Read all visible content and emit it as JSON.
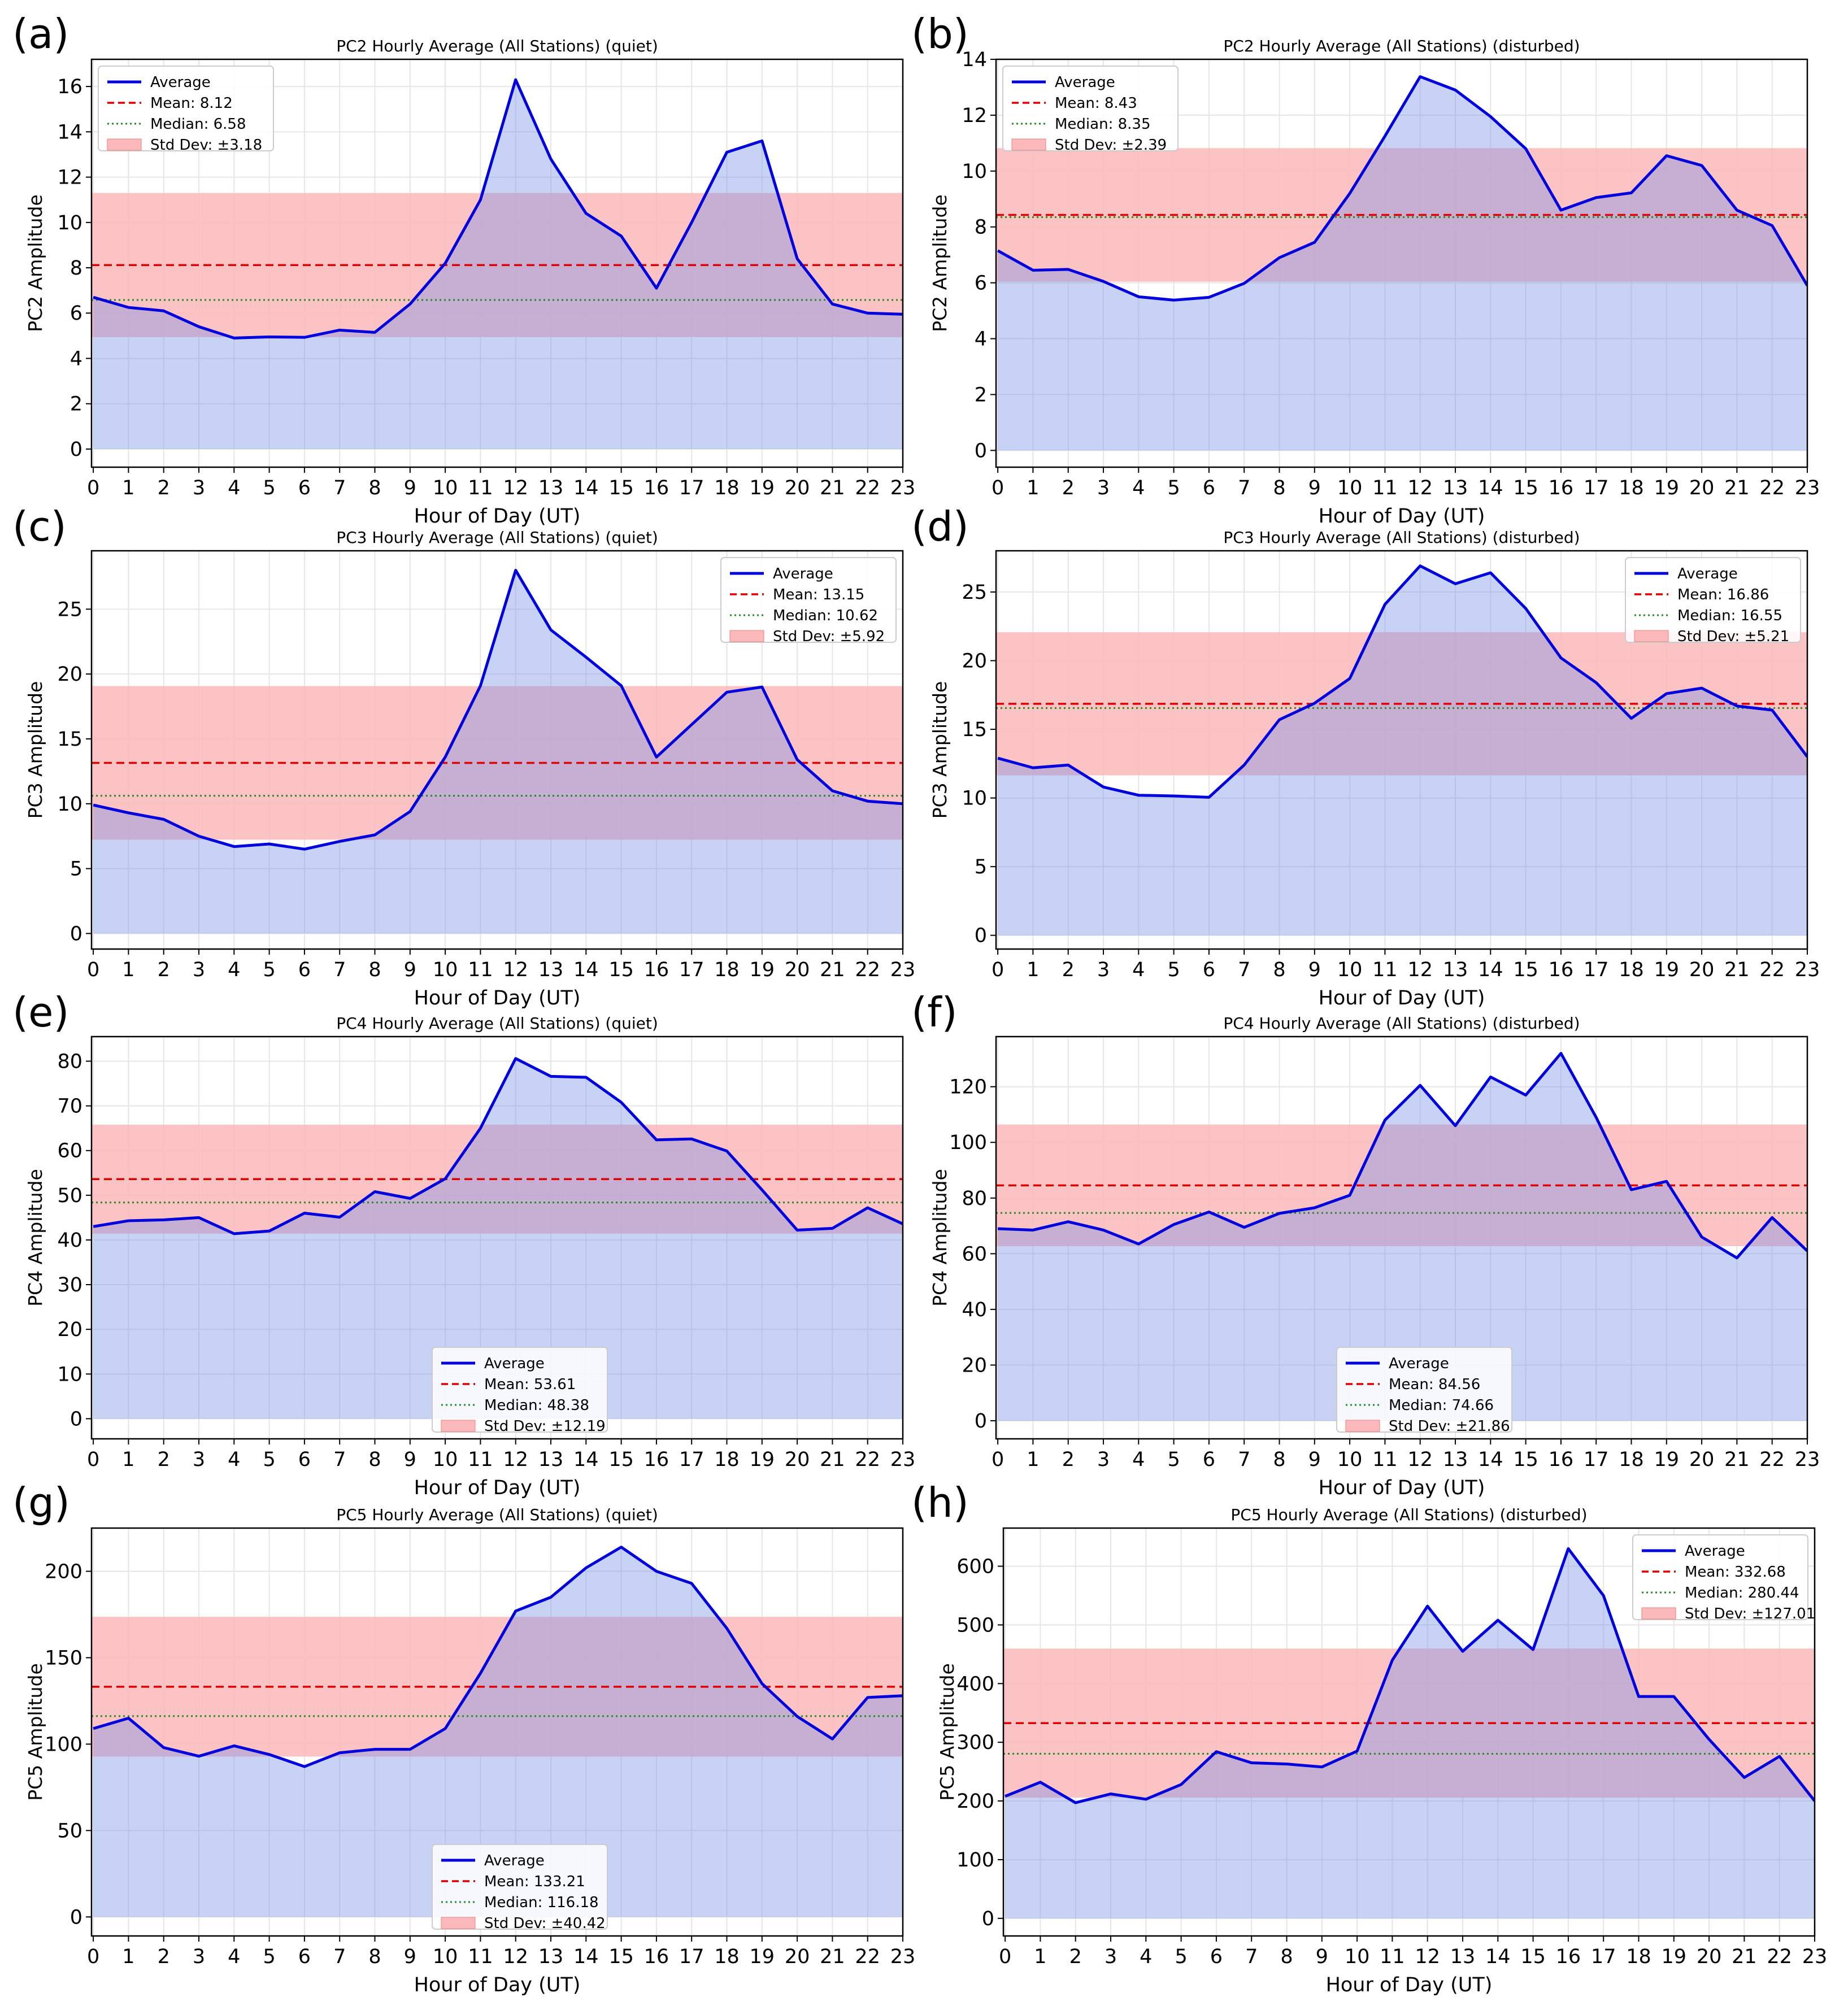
{
  "hours": [
    0,
    1,
    2,
    3,
    4,
    5,
    6,
    7,
    8,
    9,
    10,
    11,
    12,
    13,
    14,
    15,
    16,
    17,
    18,
    19,
    20,
    21,
    22,
    23
  ],
  "xlabel": "Hour of Day (UT)",
  "legend_average": "Average",
  "legend_mean_prefix": "Mean: ",
  "legend_median_prefix": "Median: ",
  "legend_std_prefix": "Std Dev: ±",
  "colors": {
    "line": "#0000dd",
    "fill": "#c2cdf2",
    "band": "#fbb9bb",
    "overlap": "#c9a4c9",
    "mean": "#e00000",
    "median": "#228b22"
  },
  "chart_data": [
    {
      "letter": "(a)",
      "type": "area",
      "title": "PC2 Hourly Average (All Stations) (quiet)",
      "ylabel": "PC2 Amplitude",
      "ylim": [
        -0.8,
        17.2
      ],
      "yticks": [
        0,
        2,
        4,
        6,
        8,
        10,
        12,
        14,
        16
      ],
      "values": [
        6.7,
        6.25,
        6.1,
        5.4,
        4.9,
        4.95,
        4.93,
        5.25,
        5.15,
        6.4,
        8.2,
        11.0,
        16.3,
        12.8,
        10.4,
        9.4,
        7.1,
        10.0,
        13.1,
        13.6,
        8.4,
        6.4,
        6.0,
        5.95
      ],
      "mean": 8.12,
      "median": 6.58,
      "std": 3.18,
      "mean_label": "8.12",
      "median_label": "6.58",
      "std_label": "3.18",
      "legend": "upper-left"
    },
    {
      "letter": "(b)",
      "type": "area",
      "title": "PC2 Hourly Average (All Stations) (disturbed)",
      "ylabel": "PC2 Amplitude",
      "ylim": [
        -0.6,
        14.0
      ],
      "yticks": [
        0,
        2,
        4,
        6,
        8,
        10,
        12,
        14
      ],
      "values": [
        7.15,
        6.45,
        6.48,
        6.05,
        5.5,
        5.38,
        5.48,
        5.98,
        6.9,
        7.45,
        9.2,
        11.25,
        13.38,
        12.9,
        11.95,
        10.8,
        8.6,
        9.05,
        9.22,
        10.55,
        10.2,
        8.6,
        8.05,
        5.9
      ],
      "mean": 8.43,
      "median": 8.35,
      "std": 2.39,
      "mean_label": "8.43",
      "median_label": "8.35",
      "std_label": "2.39",
      "legend": "upper-left"
    },
    {
      "letter": "(c)",
      "type": "area",
      "title": "PC3 Hourly Average (All Stations) (quiet)",
      "ylabel": "PC3 Amplitude",
      "ylim": [
        -1.2,
        29.5
      ],
      "yticks": [
        0,
        5,
        10,
        15,
        20,
        25
      ],
      "values": [
        9.9,
        9.3,
        8.8,
        7.5,
        6.7,
        6.9,
        6.5,
        7.1,
        7.6,
        9.4,
        13.6,
        19.1,
        28.0,
        23.4,
        21.3,
        19.1,
        13.6,
        16.1,
        18.6,
        19.0,
        13.4,
        11.0,
        10.2,
        10.0
      ],
      "mean": 13.15,
      "median": 10.62,
      "std": 5.92,
      "mean_label": "13.15",
      "median_label": "10.62",
      "std_label": "5.92",
      "legend": "upper-right"
    },
    {
      "letter": "(d)",
      "type": "area",
      "title": "PC3 Hourly Average (All Stations) (disturbed)",
      "ylabel": "PC3 Amplitude",
      "ylim": [
        -1.0,
        28.0
      ],
      "yticks": [
        0,
        5,
        10,
        15,
        20,
        25
      ],
      "values": [
        12.9,
        12.2,
        12.4,
        10.8,
        10.2,
        10.15,
        10.05,
        12.4,
        15.7,
        16.9,
        18.7,
        24.1,
        26.9,
        25.6,
        26.4,
        23.8,
        20.2,
        18.4,
        15.8,
        17.6,
        18.0,
        16.7,
        16.4,
        13.0
      ],
      "mean": 16.86,
      "median": 16.55,
      "std": 5.21,
      "mean_label": "16.86",
      "median_label": "16.55",
      "std_label": "5.21",
      "legend": "upper-right"
    },
    {
      "letter": "(e)",
      "type": "area",
      "title": "PC4 Hourly Average (All Stations) (quiet)",
      "ylabel": "PC4 Amplitude",
      "ylim": [
        -4.5,
        85.5
      ],
      "yticks": [
        0,
        10,
        20,
        30,
        40,
        50,
        60,
        70,
        80
      ],
      "values": [
        43.0,
        44.3,
        44.5,
        45.0,
        41.4,
        42.0,
        46.0,
        45.1,
        50.8,
        49.3,
        53.7,
        65.0,
        80.6,
        76.6,
        76.4,
        70.8,
        62.4,
        62.6,
        59.9,
        51.2,
        42.2,
        42.6,
        47.2,
        43.6
      ],
      "mean": 53.61,
      "median": 48.38,
      "std": 12.19,
      "mean_label": "53.61",
      "median_label": "48.38",
      "std_label": "12.19",
      "legend": "lower-center"
    },
    {
      "letter": "(f)",
      "type": "area",
      "title": "PC4 Hourly Average (All Stations) (disturbed)",
      "ylabel": "PC4 Amplitude",
      "ylim": [
        -6.5,
        138.0
      ],
      "yticks": [
        0,
        20,
        40,
        60,
        80,
        100,
        120
      ],
      "values": [
        69.0,
        68.5,
        71.5,
        68.5,
        63.5,
        70.5,
        75.0,
        69.5,
        74.5,
        76.5,
        81.0,
        108.0,
        120.5,
        106.0,
        123.5,
        117.0,
        132.0,
        109.0,
        83.0,
        86.0,
        66.0,
        58.5,
        73.0,
        61.0
      ],
      "mean": 84.56,
      "median": 74.66,
      "std": 21.86,
      "mean_label": "84.56",
      "median_label": "74.66",
      "std_label": "21.86",
      "legend": "lower-center"
    },
    {
      "letter": "(g)",
      "type": "area",
      "title": "PC5 Hourly Average (All Stations) (quiet)",
      "ylabel": "PC5 Amplitude",
      "ylim": [
        -11.0,
        225.0
      ],
      "yticks": [
        0,
        50,
        100,
        150,
        200
      ],
      "values": [
        109,
        115,
        98,
        93,
        99,
        94,
        87,
        95,
        97,
        97,
        109,
        141,
        177,
        185,
        202,
        214,
        200,
        193,
        167,
        135,
        116,
        103,
        127,
        128
      ],
      "mean": 133.21,
      "median": 116.18,
      "std": 40.42,
      "mean_label": "133.21",
      "median_label": "116.18",
      "std_label": "40.42",
      "legend": "lower-center"
    },
    {
      "letter": "(h)",
      "type": "area",
      "title": "PC5 Hourly Average (All Stations) (disturbed)",
      "ylabel": "PC5 Amplitude",
      "ylim": [
        -30.0,
        665.0
      ],
      "yticks": [
        0,
        100,
        200,
        300,
        400,
        500,
        600
      ],
      "values": [
        208,
        232,
        197,
        212,
        203,
        228,
        284,
        265,
        263,
        258,
        285,
        440,
        532,
        455,
        508,
        458,
        630,
        550,
        378,
        378,
        305,
        240,
        276,
        200
      ],
      "mean": 332.68,
      "median": 280.44,
      "std": 127.01,
      "mean_label": "332.68",
      "median_label": "280.44",
      "std_label": "127.01",
      "legend": "upper-right"
    }
  ]
}
